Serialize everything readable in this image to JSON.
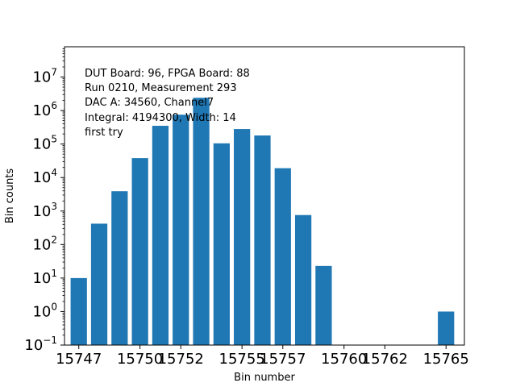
{
  "chart_data": {
    "type": "bar",
    "title": "",
    "xlabel": "Bin number",
    "ylabel": "Bin counts",
    "yscale": "log",
    "ylim": [
      0.1,
      80000000
    ],
    "xlim": [
      15746.3,
      15765.9
    ],
    "x_ticks": [
      15747,
      15750,
      15752,
      15755,
      15757,
      15760,
      15762,
      15765
    ],
    "y_ticks": [
      {
        "value": 0.1,
        "base": "10",
        "exp": "−1"
      },
      {
        "value": 1,
        "base": "10",
        "exp": "0"
      },
      {
        "value": 10,
        "base": "10",
        "exp": "1"
      },
      {
        "value": 100,
        "base": "10",
        "exp": "2"
      },
      {
        "value": 1000,
        "base": "10",
        "exp": "3"
      },
      {
        "value": 10000,
        "base": "10",
        "exp": "4"
      },
      {
        "value": 100000,
        "base": "10",
        "exp": "5"
      },
      {
        "value": 1000000,
        "base": "10",
        "exp": "6"
      },
      {
        "value": 10000000,
        "base": "10",
        "exp": "7"
      }
    ],
    "bar_color": "#1f77b4",
    "series": [
      {
        "x": [
          15747,
          15748,
          15749,
          15750,
          15751,
          15752,
          15753,
          15754,
          15755,
          15756,
          15757,
          15758,
          15759,
          15760,
          15765
        ],
        "values": [
          10,
          420,
          3900,
          38000,
          350000,
          750000,
          2400000,
          105000,
          280000,
          180000,
          19000,
          760,
          23,
          null,
          1
        ]
      }
    ],
    "annotation_lines": [
      "DUT Board: 96, FPGA Board: 88",
      "Run 0210, Measurement 293",
      "DAC A: 34560, Channel7",
      "Integral: 4194300, Width: 14",
      "first try"
    ],
    "grid": false,
    "legend": "none"
  }
}
